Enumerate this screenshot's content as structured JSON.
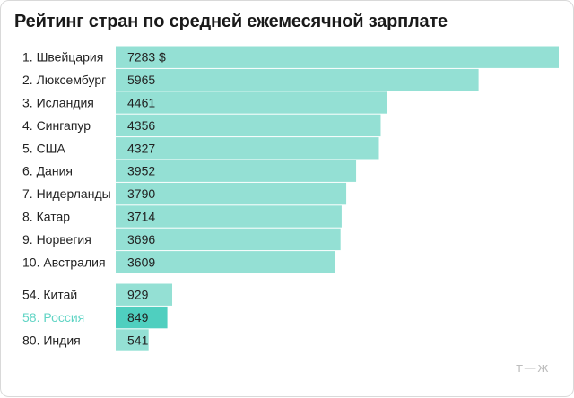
{
  "title": "Рейтинг стран по средней ежемесячной зарплате",
  "brand": "т—ж",
  "colors": {
    "bar": "#94e0d4",
    "bar_highlight": "#4fcfbf",
    "label": "#222222",
    "label_highlight": "#5fd4c4",
    "value": "#222222",
    "separator": "#ffffff"
  },
  "chart_data": {
    "type": "bar",
    "orientation": "horizontal",
    "title": "Рейтинг стран по средней ежемесячной зарплате",
    "unit": "$",
    "groups": [
      {
        "items": [
          {
            "label": "1. Швейцария",
            "value": 7283,
            "value_label": "7283 $"
          },
          {
            "label": "2. Люксембург",
            "value": 5965,
            "value_label": "5965"
          },
          {
            "label": "3. Исландия",
            "value": 4461,
            "value_label": "4461"
          },
          {
            "label": "4. Сингапур",
            "value": 4356,
            "value_label": "4356"
          },
          {
            "label": "5. США",
            "value": 4327,
            "value_label": "4327"
          },
          {
            "label": "6. Дания",
            "value": 3952,
            "value_label": "3952"
          },
          {
            "label": "7. Нидерланды",
            "value": 3790,
            "value_label": "3790"
          },
          {
            "label": "8. Катар",
            "value": 3714,
            "value_label": "3714"
          },
          {
            "label": "9. Норвегия",
            "value": 3696,
            "value_label": "3696"
          },
          {
            "label": "10. Австралия",
            "value": 3609,
            "value_label": "3609"
          }
        ]
      },
      {
        "items": [
          {
            "label": "54. Китай",
            "value": 929,
            "value_label": "929"
          },
          {
            "label": "58. Россия",
            "value": 849,
            "value_label": "849",
            "highlight": true
          },
          {
            "label": "80. Индия",
            "value": 541,
            "value_label": "541"
          }
        ]
      }
    ],
    "xlim": [
      0,
      7283
    ],
    "grid": false,
    "legend": "none"
  }
}
